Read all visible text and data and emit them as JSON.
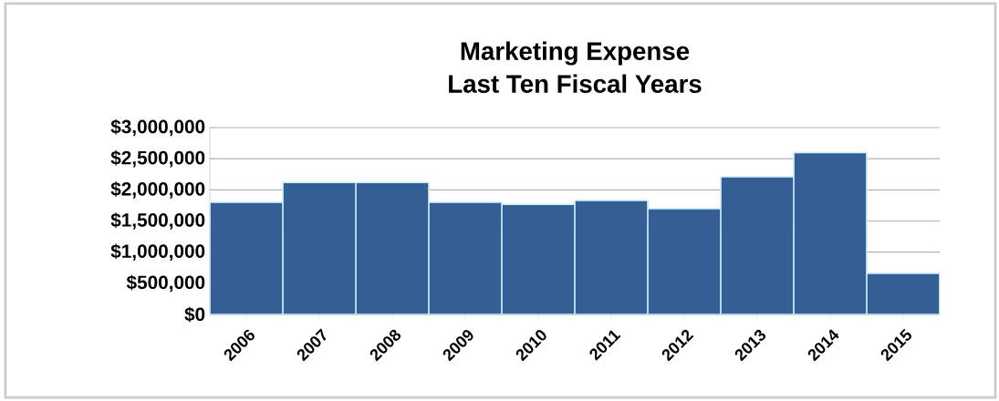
{
  "chart_data": {
    "type": "bar",
    "title": "Marketing Expense\nLast Ten Fiscal Years",
    "categories": [
      "2006",
      "2007",
      "2008",
      "2009",
      "2010",
      "2011",
      "2012",
      "2013",
      "2014",
      "2015"
    ],
    "values": [
      1800000,
      2120000,
      2120000,
      1800000,
      1770000,
      1830000,
      1700000,
      2210000,
      2600000,
      660000
    ],
    "color": "#355f94",
    "ylim": [
      0,
      3000000
    ],
    "yticks": [
      {
        "value": 0,
        "label": "$0"
      },
      {
        "value": 500000,
        "label": "$500,000"
      },
      {
        "value": 1000000,
        "label": "$1,000,000"
      },
      {
        "value": 1500000,
        "label": "$1,500,000"
      },
      {
        "value": 2000000,
        "label": "$2,000,000"
      },
      {
        "value": 2500000,
        "label": "$2,500,000"
      },
      {
        "value": 3000000,
        "label": "$3,000,000"
      }
    ],
    "grid": "y"
  }
}
